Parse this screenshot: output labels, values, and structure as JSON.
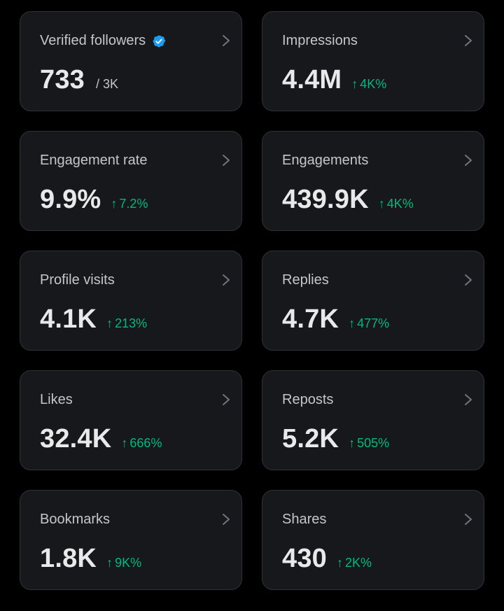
{
  "colors": {
    "background": "#000000",
    "card": "#16181c",
    "border": "#2f3336",
    "positive": "#00ba7c",
    "verified": "#1d9bf0"
  },
  "metrics": [
    {
      "label": "Verified followers",
      "value": "733",
      "suffix": "/ 3K",
      "verified": true
    },
    {
      "label": "Impressions",
      "value": "4.4M",
      "change": "4K%"
    },
    {
      "label": "Engagement rate",
      "value": "9.9%",
      "change": "7.2%"
    },
    {
      "label": "Engagements",
      "value": "439.9K",
      "change": "4K%"
    },
    {
      "label": "Profile visits",
      "value": "4.1K",
      "change": "213%"
    },
    {
      "label": "Replies",
      "value": "4.7K",
      "change": "477%"
    },
    {
      "label": "Likes",
      "value": "32.4K",
      "change": "666%"
    },
    {
      "label": "Reposts",
      "value": "5.2K",
      "change": "505%"
    },
    {
      "label": "Bookmarks",
      "value": "1.8K",
      "change": "9K%"
    },
    {
      "label": "Shares",
      "value": "430",
      "change": "2K%"
    }
  ],
  "icons": {
    "arrow": "↑",
    "chevron": "chevron-right-icon",
    "verified": "verified-badge-icon"
  }
}
